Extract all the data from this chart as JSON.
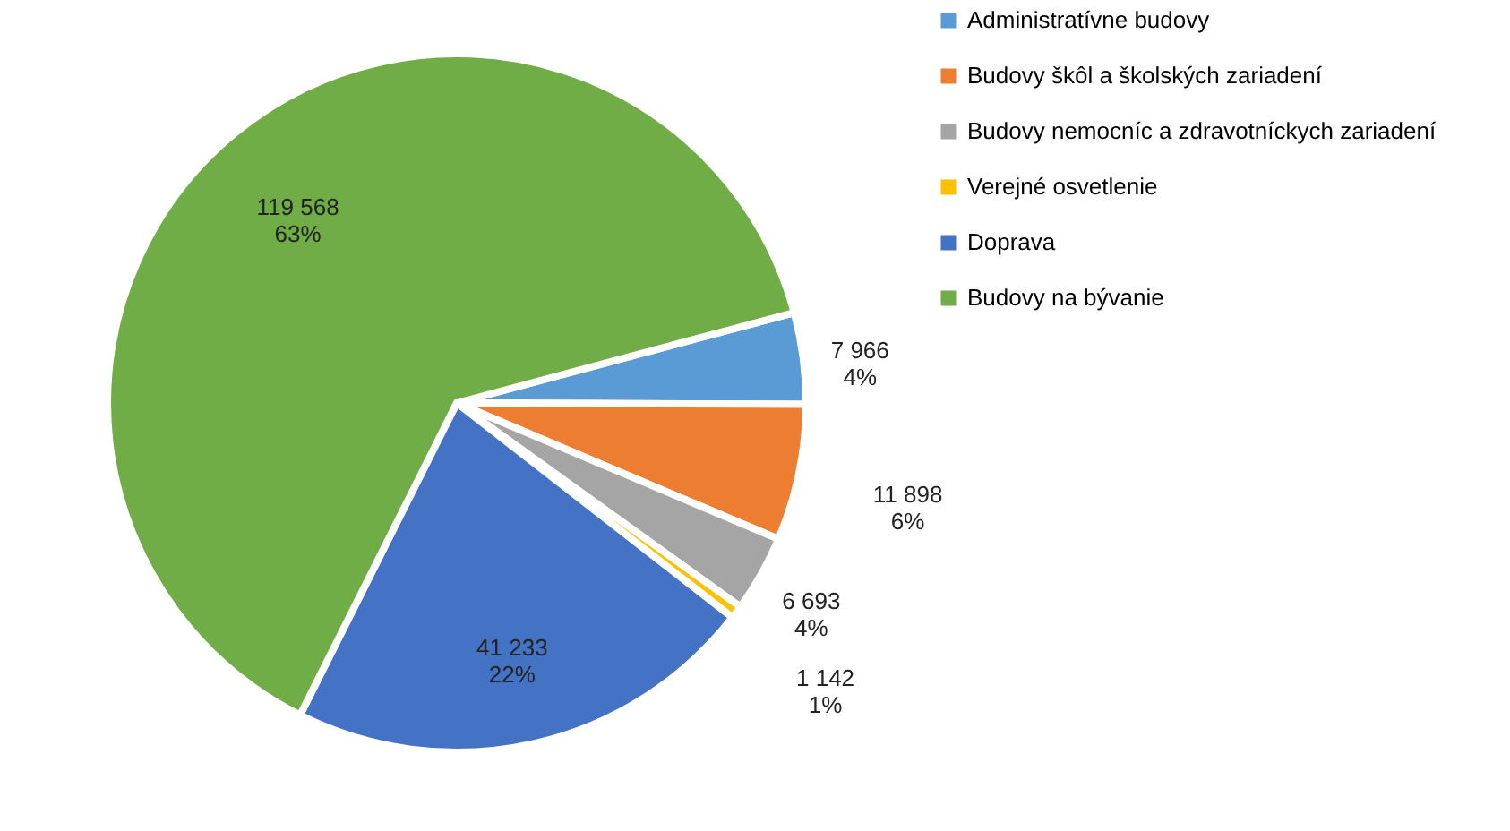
{
  "chart_data": {
    "type": "pie",
    "categories": [
      "Administratívne budovy",
      "Budovy škôl a školských zariadení",
      "Budovy nemocníc a zdravotníckych zariadení",
      "Verejné osvetlenie",
      "Doprava",
      "Budovy na bývanie"
    ],
    "values": [
      7966,
      11898,
      6693,
      1142,
      41233,
      119568
    ],
    "colors": [
      "#5b9bd5",
      "#ed7d31",
      "#a5a5a5",
      "#ffc000",
      "#4472c4",
      "#70ad47"
    ],
    "value_labels": [
      "7 966\n4%",
      "11 898\n6%",
      "6 693\n4%",
      "1 142\n1%",
      "41 233\n22%",
      "119 568\n63%"
    ],
    "legend": "right"
  }
}
